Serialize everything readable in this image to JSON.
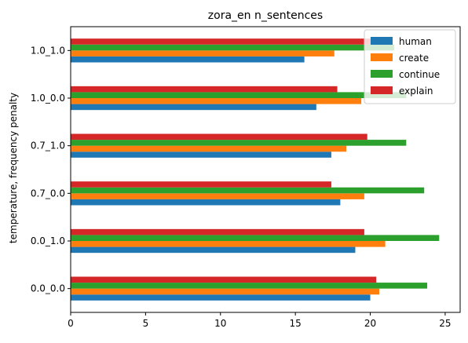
{
  "chart_data": {
    "type": "bar",
    "orientation": "horizontal",
    "title": "zora_en n_sentences",
    "ylabel": "temperature, frequency penalty",
    "xlabel": "",
    "categories": [
      "0.0_0.0",
      "0.0_1.0",
      "0.7_0.0",
      "0.7_1.0",
      "1.0_0.0",
      "1.0_1.0"
    ],
    "xlim": [
      0,
      26
    ],
    "xticks": [
      0,
      5,
      10,
      15,
      20,
      25
    ],
    "grid": false,
    "legend_position": "top-right",
    "series": [
      {
        "name": "human",
        "color": "#1f77b4",
        "values": [
          20.0,
          19.0,
          18.0,
          17.4,
          16.4,
          15.6
        ]
      },
      {
        "name": "create",
        "color": "#ff7f0e",
        "values": [
          20.6,
          21.0,
          19.6,
          18.4,
          19.4,
          17.6
        ]
      },
      {
        "name": "continue",
        "color": "#2ca02c",
        "values": [
          23.8,
          24.6,
          23.6,
          22.4,
          22.4,
          21.6
        ]
      },
      {
        "name": "explain",
        "color": "#d62728",
        "values": [
          20.4,
          19.6,
          17.4,
          19.8,
          17.8,
          21.4
        ]
      }
    ]
  }
}
